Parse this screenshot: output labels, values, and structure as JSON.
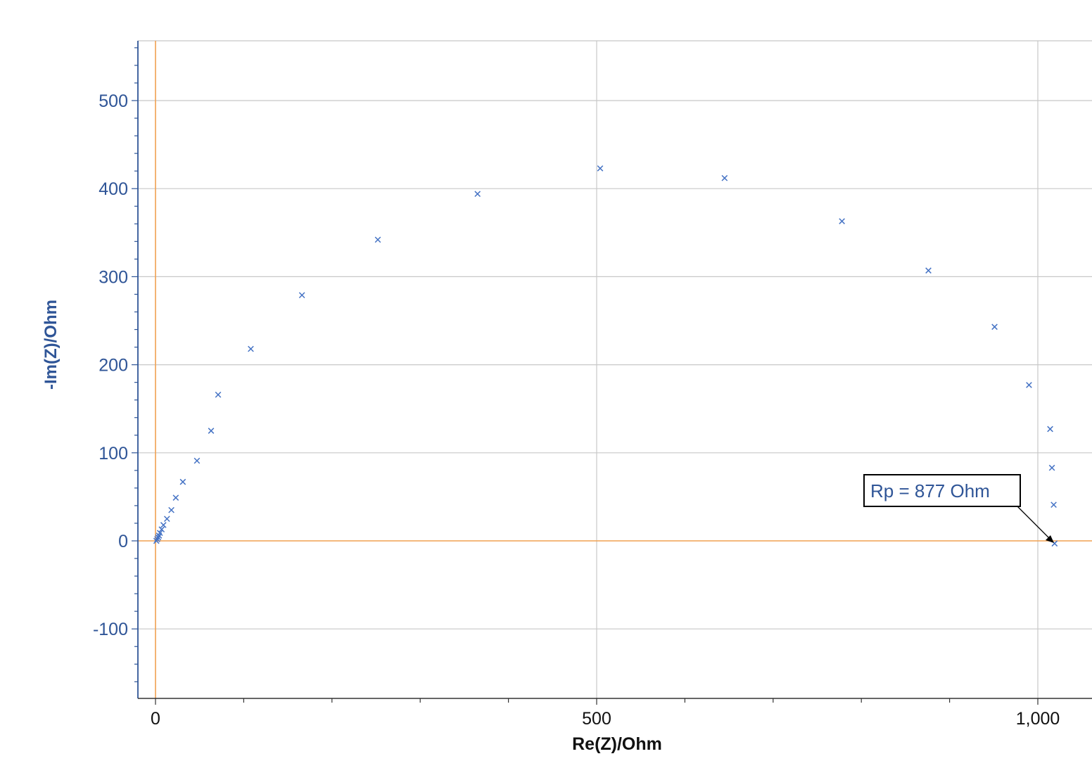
{
  "chart_data": {
    "type": "scatter",
    "xlabel": "Re(Z)/Ohm",
    "ylabel": "-Im(Z)/Ohm",
    "xlim": [
      -20,
      1065
    ],
    "ylim": [
      -178,
      568
    ],
    "x_ticks": [
      0,
      500,
      1000
    ],
    "x_tick_labels": [
      "0",
      "500",
      "1,000"
    ],
    "y_ticks": [
      -100,
      0,
      100,
      200,
      300,
      400,
      500
    ],
    "y_tick_labels": [
      "-100",
      "0",
      "100",
      "200",
      "300",
      "400",
      "500"
    ],
    "grid": true,
    "marker": "x",
    "series": [
      {
        "x": [
          1,
          2,
          3,
          4,
          5,
          7,
          9,
          13,
          18,
          23,
          31,
          47,
          63,
          71,
          108,
          166,
          252,
          365,
          504,
          645,
          778,
          876,
          951,
          990,
          1014,
          1016,
          1018,
          1019
        ],
        "y": [
          0,
          2,
          4,
          6,
          9,
          13,
          18,
          25,
          35,
          49,
          67,
          91,
          125,
          166,
          218,
          279,
          342,
          394,
          423,
          412,
          363,
          307,
          243,
          177,
          127,
          83,
          41,
          -3
        ]
      }
    ],
    "colors": {
      "marker": "#4472C4",
      "axis": "#2F5597",
      "zero_line": "#F0A050",
      "grid": "#C8C8C8"
    },
    "annotations": [
      {
        "text": "Rp = 877 Ohm",
        "points_to": [
          1019,
          -3
        ]
      }
    ]
  }
}
